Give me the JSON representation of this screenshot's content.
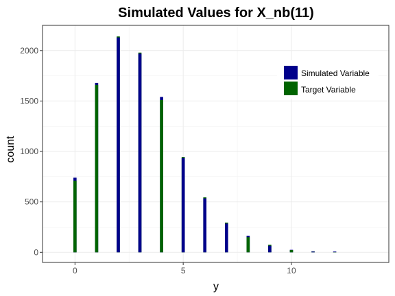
{
  "chart_data": {
    "type": "bar",
    "title": "Simulated Values for X_nb(11)",
    "xlabel": "y",
    "ylabel": "count",
    "xlim": [
      -1.5,
      14.5
    ],
    "ylim": [
      -100,
      2250
    ],
    "xticks": [
      0,
      5,
      10
    ],
    "yticks": [
      0,
      500,
      1000,
      1500,
      2000
    ],
    "grid": true,
    "legend_position": "top-right",
    "x": [
      0,
      1,
      2,
      3,
      4,
      5,
      6,
      7,
      8,
      9,
      10,
      11,
      12
    ],
    "series": [
      {
        "name": "Simulated Variable",
        "color": "#00008b",
        "values": [
          740,
          1680,
          2130,
          1970,
          1540,
          935,
          535,
          285,
          165,
          65,
          25,
          8,
          8
        ]
      },
      {
        "name": "Target Variable",
        "color": "#006400",
        "values": [
          710,
          1660,
          2140,
          1980,
          1510,
          945,
          545,
          295,
          150,
          75,
          22,
          10,
          2
        ]
      }
    ]
  }
}
